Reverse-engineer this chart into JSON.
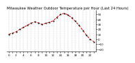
{
  "title": "Milwaukee Weather Outdoor Temperature per Hour (Last 24 Hours)",
  "hours": [
    0,
    1,
    2,
    3,
    4,
    5,
    6,
    7,
    8,
    9,
    10,
    11,
    12,
    13,
    14,
    15,
    16,
    17,
    18,
    19,
    20,
    21,
    22,
    23
  ],
  "temps": [
    10,
    12,
    15,
    20,
    24,
    28,
    32,
    35,
    33,
    30,
    32,
    34,
    37,
    44,
    50,
    52,
    49,
    43,
    36,
    28,
    18,
    8,
    0,
    -5
  ],
  "line_color": "#cc0000",
  "marker_color": "#000000",
  "bg_color": "#ffffff",
  "grid_color": "#999999",
  "ylim_min": -25,
  "ylim_max": 58,
  "yticks": [
    -20,
    -10,
    0,
    10,
    20,
    30,
    40,
    50
  ],
  "title_fontsize": 3.8,
  "tick_fontsize": 3.0,
  "label_every": 2
}
